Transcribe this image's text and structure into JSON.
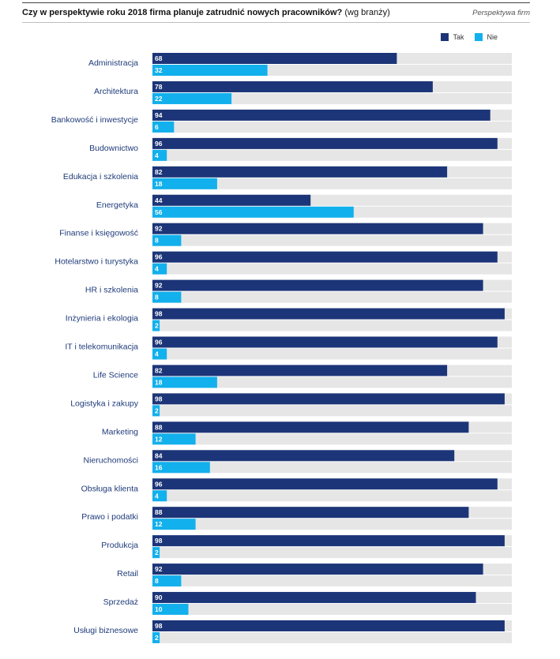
{
  "header": {
    "title_bold": "Czy w perspektywie roku 2018 firma planuje zatrudnić nowych pracowników?",
    "title_normal": "(wg branży)",
    "source": "Perspektywa firm"
  },
  "colors": {
    "tak": "#1c3578",
    "nie": "#12b0ec",
    "track": "#e6e6e6",
    "label": "#1f3b7a"
  },
  "chart_data": {
    "type": "bar",
    "orientation": "horizontal",
    "categories": [
      "Administracja",
      "Architektura",
      "Bankowość i inwestycje",
      "Budownictwo",
      "Edukacja i szkolenia",
      "Energetyka",
      "Finanse i księgowość",
      "Hotelarstwo i turystyka",
      "HR i szkolenia",
      "Inżynieria i ekologia",
      "IT i telekomunikacja",
      "Life Science",
      "Logistyka i zakupy",
      "Marketing",
      "Nieruchomości",
      "Obsługa klienta",
      "Prawo i podatki",
      "Produkcja",
      "Retail",
      "Sprzedaż",
      "Usługi biznesowe"
    ],
    "series": [
      {
        "name": "Tak",
        "values": [
          68,
          78,
          94,
          96,
          82,
          44,
          92,
          96,
          92,
          98,
          96,
          82,
          98,
          88,
          84,
          96,
          88,
          98,
          92,
          90,
          98
        ]
      },
      {
        "name": "Nie",
        "values": [
          32,
          22,
          6,
          4,
          18,
          56,
          8,
          4,
          8,
          2,
          4,
          18,
          2,
          12,
          16,
          4,
          12,
          2,
          8,
          10,
          2
        ]
      }
    ],
    "xlim": [
      0,
      100
    ],
    "legend_position": "top-right",
    "grid": false
  }
}
